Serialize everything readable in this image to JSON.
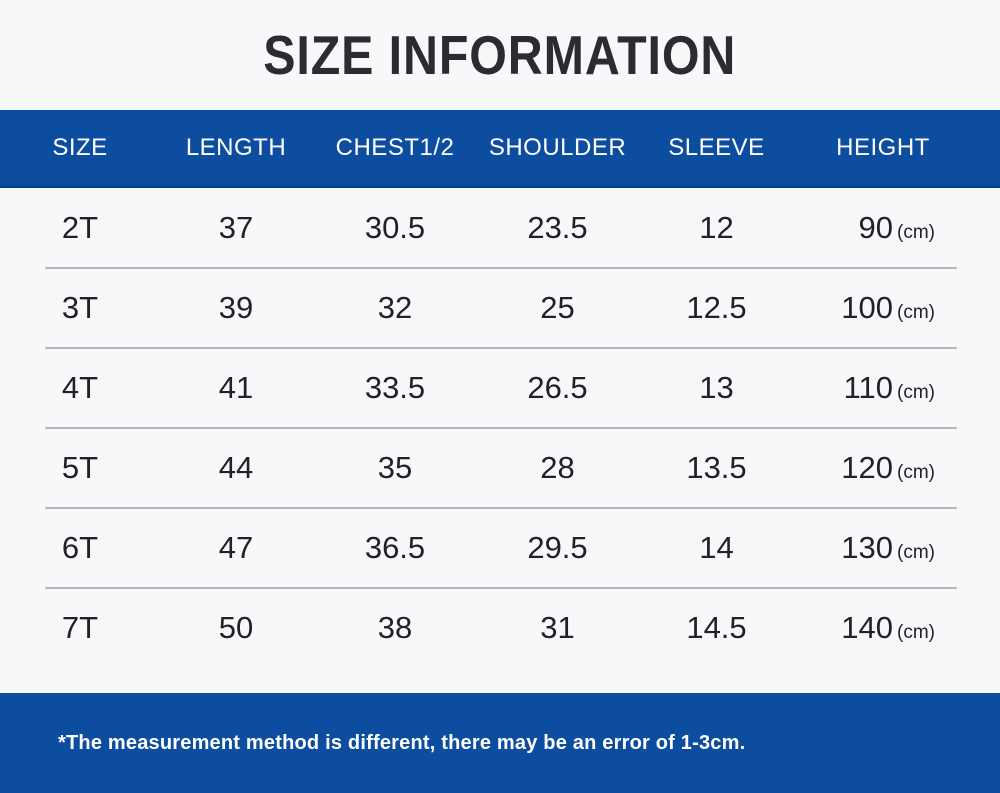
{
  "title": "SIZE INFORMATION",
  "footnote": "*The measurement method is different, there may be an error of 1-3cm.",
  "colors": {
    "accent_blue": "#0d4da0",
    "background": "#f7f8fa",
    "header_text": "#ffffff",
    "body_text": "#222226",
    "divider_gray": "#b6b6ba"
  },
  "chart_data": {
    "type": "table",
    "title": "SIZE INFORMATION",
    "height_unit": "(cm)",
    "columns": [
      "SIZE",
      "LENGTH",
      "CHEST1/2",
      "SHOULDER",
      "SLEEVE",
      "HEIGHT"
    ],
    "rows": [
      {
        "size": "2T",
        "length": "37",
        "chest": "30.5",
        "shoulder": "23.5",
        "sleeve": "12",
        "height": "90"
      },
      {
        "size": "3T",
        "length": "39",
        "chest": "32",
        "shoulder": "25",
        "sleeve": "12.5",
        "height": "100"
      },
      {
        "size": "4T",
        "length": "41",
        "chest": "33.5",
        "shoulder": "26.5",
        "sleeve": "13",
        "height": "110"
      },
      {
        "size": "5T",
        "length": "44",
        "chest": "35",
        "shoulder": "28",
        "sleeve": "13.5",
        "height": "120"
      },
      {
        "size": "6T",
        "length": "47",
        "chest": "36.5",
        "shoulder": "29.5",
        "sleeve": "14",
        "height": "130"
      },
      {
        "size": "7T",
        "length": "50",
        "chest": "38",
        "shoulder": "31",
        "sleeve": "14.5",
        "height": "140"
      }
    ]
  }
}
